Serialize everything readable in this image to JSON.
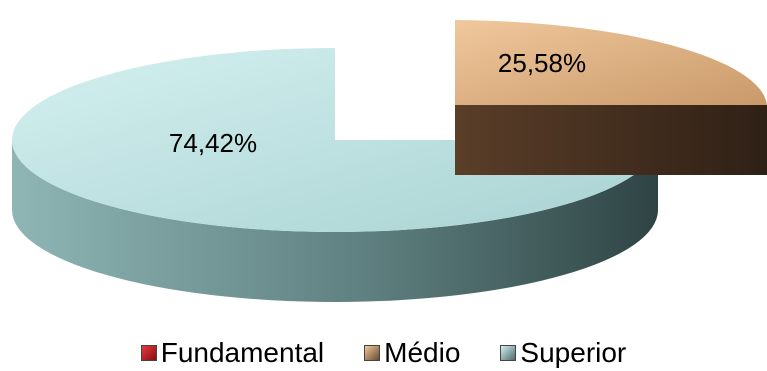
{
  "chart_data": {
    "type": "pie",
    "style": "3d-exploded",
    "categories": [
      "Fundamental",
      "Médio",
      "Superior"
    ],
    "values": [
      0,
      25.58,
      74.42
    ],
    "data_labels": [
      "",
      "25,58%",
      "74,42%"
    ],
    "colors": {
      "Fundamental": "#c0141b",
      "Médio": "#e0b48a",
      "Médio_side": "#4a3322",
      "Superior": "#b8e0e0",
      "Superior_side": "#4e6c6c"
    },
    "legend_position": "bottom"
  },
  "legend": {
    "items": [
      {
        "label": "Fundamental",
        "color": "#c0141b"
      },
      {
        "label": "Médio",
        "color": "#d9a878"
      },
      {
        "label": "Superior",
        "color": "#a8d6d6"
      }
    ]
  }
}
